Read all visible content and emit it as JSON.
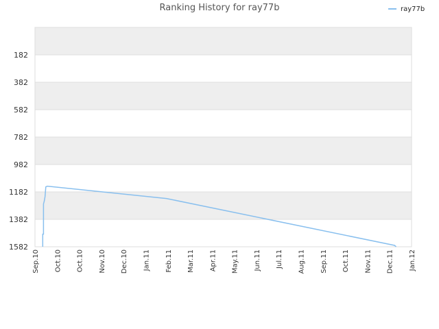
{
  "chart_data": {
    "type": "line",
    "title": "Ranking History for ray77b",
    "xlabel": "",
    "ylabel": "",
    "y_axis_inverted": true,
    "ylim": [
      -18,
      1582
    ],
    "yticks": [
      182,
      382,
      582,
      782,
      982,
      1182,
      1382,
      1582
    ],
    "xticks": [
      "Sep.10",
      "Oct.10",
      "Oct.10",
      "Nov.10",
      "Dec.10",
      "Jan.11",
      "Feb.11",
      "Mar.11",
      "Apr.11",
      "May.11",
      "Jun.11",
      "Jul.11",
      "Aug.11",
      "Sep.11",
      "Oct.11",
      "Nov.11",
      "Dec.11",
      "Jan.12"
    ],
    "grid": true,
    "legend_position": "top-right",
    "series": [
      {
        "name": "ray77b",
        "color": "#88bfee",
        "x": [
          "2010-09-11",
          "2010-09-11",
          "2010-09-12",
          "2010-09-12",
          "2010-09-13",
          "2010-09-14",
          "2010-09-15",
          "2010-09-17",
          "2011-02-18",
          "2011-12-10",
          "2011-12-12"
        ],
        "y": [
          1582,
          1490,
          1490,
          1270,
          1250,
          1215,
          1145,
          1140,
          1230,
          1572,
          1582
        ]
      }
    ]
  }
}
